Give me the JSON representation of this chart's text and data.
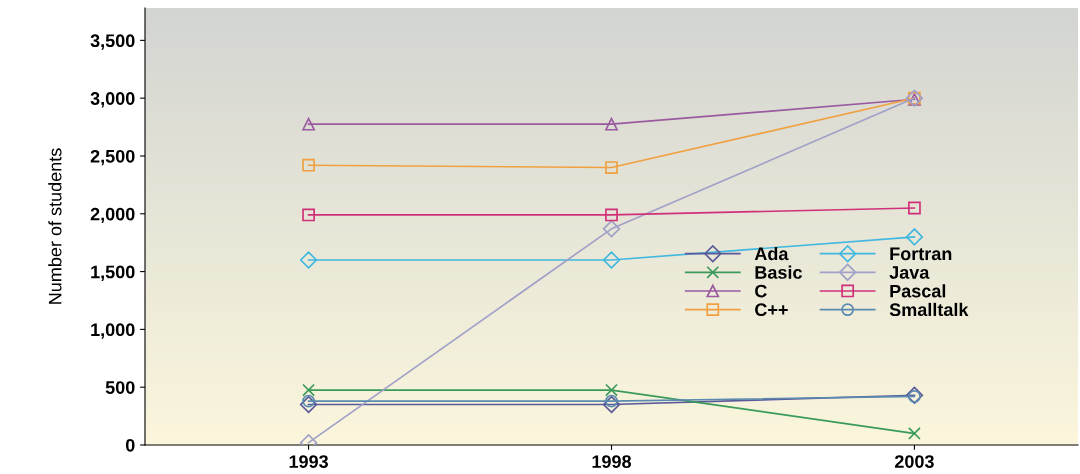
{
  "chart_data": {
    "type": "line",
    "ylabel": "Number of students",
    "x": [
      1993,
      1998,
      2003
    ],
    "xlim": [
      1990.3,
      2005.7
    ],
    "xticks": [
      1993,
      1998,
      2003
    ],
    "ylim": [
      0,
      3780
    ],
    "yticks": [
      {
        "value": 0,
        "label": "0"
      },
      {
        "value": 500,
        "label": "500"
      },
      {
        "value": 1000,
        "label": "1,000"
      },
      {
        "value": 1500,
        "label": "1,500"
      },
      {
        "value": 2000,
        "label": "2,000"
      },
      {
        "value": 2500,
        "label": "2,500"
      },
      {
        "value": 3000,
        "label": "3,000"
      },
      {
        "value": 3500,
        "label": "3,500"
      }
    ],
    "grid": false,
    "legend": "right",
    "line_style": "solid",
    "series": [
      {
        "name": "Ada",
        "color": "#5a5a9a",
        "marker": "diamond",
        "values": [
          350,
          350,
          430
        ]
      },
      {
        "name": "Basic",
        "color": "#3a9a5a",
        "marker": "cross",
        "values": [
          475,
          475,
          100
        ]
      },
      {
        "name": "C",
        "color": "#9a5aa0",
        "marker": "triangle",
        "values": [
          2775,
          2775,
          2990
        ]
      },
      {
        "name": "C++",
        "color": "#f0a040",
        "marker": "square",
        "values": [
          2420,
          2400,
          3000
        ]
      },
      {
        "name": "Fortran",
        "color": "#40b8e0",
        "marker": "diamond",
        "values": [
          1600,
          1600,
          1800
        ]
      },
      {
        "name": "Java",
        "color": "#a0a0c8",
        "marker": "diamond",
        "values": [
          20,
          1870,
          3000
        ]
      },
      {
        "name": "Pascal",
        "color": "#d0307a",
        "marker": "square",
        "values": [
          1990,
          1990,
          2050
        ]
      },
      {
        "name": "Smalltalk",
        "color": "#5a8ab0",
        "marker": "circle",
        "values": [
          380,
          380,
          420
        ]
      }
    ]
  }
}
